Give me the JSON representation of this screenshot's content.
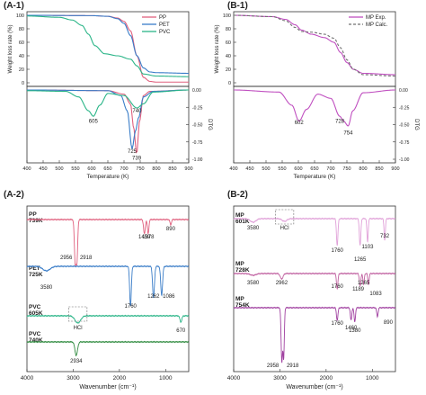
{
  "panels": {
    "a1": {
      "label": "(A-1)"
    },
    "b1": {
      "label": "(B-1)"
    },
    "a2": {
      "label": "(A-2)"
    },
    "b2": {
      "label": "(B-2)"
    }
  },
  "chart_data": [
    {
      "id": "A-1",
      "type": "line",
      "xlabel": "Temperature (K)",
      "ylabel_left": "Weight loss rate (%)",
      "ylabel_right": "DTG",
      "xlim": [
        400,
        900
      ],
      "xticks": [
        400,
        450,
        500,
        550,
        600,
        650,
        700,
        750,
        800,
        850,
        900
      ],
      "tg_ylim": [
        0,
        100
      ],
      "tg_yticks": [
        0,
        20,
        40,
        60,
        80,
        100
      ],
      "dtg_ylim": [
        -1.0,
        0.0
      ],
      "dtg_yticks": [
        "0.00",
        "-0.25",
        "-0.50",
        "-0.75",
        "-1.00"
      ],
      "legend": "top-right",
      "colors": {
        "PP": "#e0607e",
        "PET": "#3a7dc8",
        "PVC": "#2bb588"
      },
      "tg_series": [
        {
          "name": "PP",
          "x": [
            400,
            600,
            650,
            680,
            700,
            720,
            740,
            760,
            780,
            800,
            900
          ],
          "y": [
            100,
            99.5,
            98.5,
            96,
            91,
            77,
            40,
            8,
            2,
            1,
            1
          ]
        },
        {
          "name": "PET",
          "x": [
            400,
            600,
            650,
            680,
            700,
            720,
            740,
            760,
            780,
            800,
            900
          ],
          "y": [
            100,
            99.5,
            98.5,
            95,
            88,
            70,
            40,
            22,
            16,
            15,
            14
          ]
        },
        {
          "name": "PVC",
          "x": [
            400,
            500,
            540,
            570,
            590,
            610,
            640,
            680,
            720,
            740,
            760,
            800,
            900
          ],
          "y": [
            99,
            97,
            93,
            85,
            72,
            55,
            43,
            40,
            35,
            25,
            13,
            10,
            9
          ]
        }
      ],
      "dtg_series": [
        {
          "name": "PP",
          "x": [
            400,
            650,
            700,
            720,
            730,
            739,
            748,
            760,
            780,
            900
          ],
          "y": [
            0,
            -0.01,
            -0.06,
            -0.2,
            -0.55,
            -0.93,
            -0.45,
            -0.08,
            -0.02,
            0
          ]
        },
        {
          "name": "PET",
          "x": [
            400,
            650,
            690,
            710,
            725,
            735,
            745,
            760,
            790,
            900
          ],
          "y": [
            0,
            -0.01,
            -0.08,
            -0.3,
            -0.85,
            -0.6,
            -0.4,
            -0.1,
            -0.02,
            0
          ]
        },
        {
          "name": "PVC",
          "x": [
            400,
            520,
            560,
            590,
            605,
            625,
            650,
            700,
            740,
            760,
            790,
            900
          ],
          "y": [
            -0.01,
            -0.02,
            -0.1,
            -0.3,
            -0.38,
            -0.22,
            -0.05,
            -0.08,
            -0.26,
            -0.2,
            -0.03,
            0
          ]
        }
      ],
      "annotations": [
        {
          "text": "605",
          "x": 605,
          "y": -0.45
        },
        {
          "text": "740",
          "x": 740,
          "y": -0.3
        },
        {
          "text": "725",
          "x": 725,
          "y": -0.88
        },
        {
          "text": "739",
          "x": 739,
          "y": -0.98
        }
      ]
    },
    {
      "id": "B-1",
      "type": "line",
      "xlabel": "Temperature (K)",
      "ylabel_left": "Weight loss rate (%)",
      "ylabel_right": "DTG",
      "xlim": [
        400,
        900
      ],
      "xticks": [
        400,
        450,
        500,
        550,
        600,
        650,
        700,
        750,
        800,
        850,
        900
      ],
      "tg_ylim": [
        0,
        100
      ],
      "tg_yticks": [
        0,
        20,
        40,
        60,
        80,
        100
      ],
      "dtg_ylim": [
        -1.0,
        0.0
      ],
      "dtg_yticks": [
        "0.00",
        "-0.25",
        "-0.50",
        "-0.75",
        "-1.00"
      ],
      "legend": "top-right",
      "colors": {
        "MP Exp.": "#c050c0",
        "MP Calc.": "#707070"
      },
      "tg_series": [
        {
          "name": "MP Exp.",
          "style": "solid",
          "x": [
            400,
            520,
            560,
            590,
            610,
            640,
            680,
            710,
            730,
            750,
            770,
            800,
            900
          ],
          "y": [
            100,
            98,
            94,
            86,
            78,
            72,
            67,
            60,
            45,
            30,
            20,
            14,
            12
          ]
        },
        {
          "name": "MP Calc.",
          "style": "dashed",
          "x": [
            400,
            520,
            560,
            590,
            610,
            640,
            680,
            710,
            730,
            750,
            770,
            800,
            900
          ],
          "y": [
            100,
            98,
            92,
            82,
            76,
            75,
            72,
            66,
            52,
            34,
            20,
            12,
            10
          ]
        }
      ],
      "dtg_series": [
        {
          "name": "MP Exp.",
          "x": [
            400,
            540,
            580,
            602,
            625,
            660,
            700,
            728,
            740,
            754,
            768,
            800,
            900
          ],
          "y": [
            0,
            -0.03,
            -0.22,
            -0.45,
            -0.28,
            -0.06,
            -0.12,
            -0.38,
            -0.45,
            -0.52,
            -0.3,
            -0.04,
            0
          ]
        }
      ],
      "annotations": [
        {
          "text": "602",
          "x": 602,
          "y": -0.47
        },
        {
          "text": "728",
          "x": 728,
          "y": -0.45
        },
        {
          "text": "754",
          "x": 754,
          "y": -0.62
        }
      ]
    },
    {
      "id": "A-2",
      "type": "line",
      "xlabel": "Wavenumber (cm⁻¹)",
      "xlim": [
        4000,
        500
      ],
      "xticks": [
        4000,
        3000,
        2000,
        1000
      ],
      "traces": [
        {
          "name": "PP",
          "subtitle": "739K",
          "color": "#e0607e",
          "peaks": [
            {
              "x": 2956,
              "label": "2956"
            },
            {
              "x": 2918,
              "label": "2918"
            },
            {
              "x": 1459,
              "label": "1459"
            },
            {
              "x": 1378,
              "label": "1378"
            },
            {
              "x": 890,
              "label": "890"
            }
          ]
        },
        {
          "name": "PET",
          "subtitle": "725K",
          "color": "#3a7dc8",
          "peaks": [
            {
              "x": 3580,
              "label": "3580"
            },
            {
              "x": 1760,
              "label": "1760"
            },
            {
              "x": 1262,
              "label": "1262"
            },
            {
              "x": 1086,
              "label": "1086"
            }
          ]
        },
        {
          "name": "PVC",
          "subtitle": "605K",
          "color": "#2bb588",
          "peaks": [
            {
              "x": 2900,
              "label": "HCl"
            },
            {
              "x": 670,
              "label": "670"
            }
          ]
        },
        {
          "name": "PVC",
          "subtitle": "740K",
          "color": "#2e8a3e",
          "peaks": [
            {
              "x": 2934,
              "label": "2934"
            }
          ]
        }
      ]
    },
    {
      "id": "B-2",
      "type": "line",
      "xlabel": "Wavenumber (cm⁻¹)",
      "xlim": [
        4000,
        500
      ],
      "xticks": [
        4000,
        3000,
        2000,
        1000
      ],
      "traces": [
        {
          "name": "MP",
          "subtitle": "601K",
          "color": "#e0a0d8",
          "peaks": [
            {
              "x": 3580,
              "label": "3580"
            },
            {
              "x": 2900,
              "label": "HCl"
            },
            {
              "x": 1760,
              "label": "1760"
            },
            {
              "x": 1265,
              "label": "1265"
            },
            {
              "x": 1103,
              "label": "1103"
            },
            {
              "x": 732,
              "label": "732"
            }
          ]
        },
        {
          "name": "MP",
          "subtitle": "728K",
          "color": "#c060a0",
          "peaks": [
            {
              "x": 3580,
              "label": "3580"
            },
            {
              "x": 2962,
              "label": "2962"
            },
            {
              "x": 1760,
              "label": "1760"
            },
            {
              "x": 1265,
              "label": "1265"
            },
            {
              "x": 1189,
              "label": "1189"
            },
            {
              "x": 1083,
              "label": "1083"
            }
          ]
        },
        {
          "name": "MP",
          "subtitle": "754K",
          "color": "#a040a0",
          "peaks": [
            {
              "x": 2958,
              "label": "2958"
            },
            {
              "x": 2918,
              "label": "2918"
            },
            {
              "x": 1760,
              "label": "1760"
            },
            {
              "x": 1460,
              "label": "1460"
            },
            {
              "x": 1380,
              "label": "1380"
            },
            {
              "x": 890,
              "label": "890"
            }
          ]
        }
      ]
    }
  ]
}
